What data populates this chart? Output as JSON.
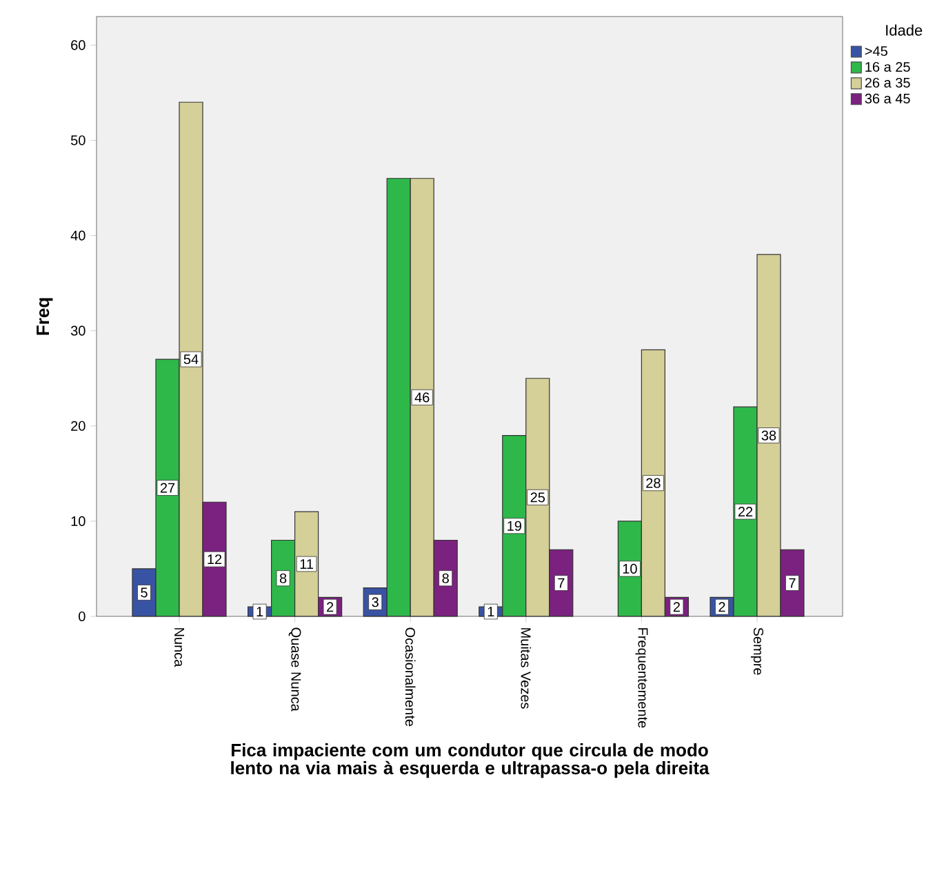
{
  "chart_data": {
    "type": "bar",
    "xlabel": "Fica impaciente com um condutor que circula de modo  lento na via mais à esquerda e ultrapassa-o pela direita",
    "ylabel": "Freq",
    "legend_title": "Idade",
    "categories": [
      "Nunca",
      "Quase Nunca",
      "Ocasionalmente",
      "Muitas Vezes",
      "Frequentemente",
      "Sempre"
    ],
    "series": [
      {
        "name": ">45",
        "color": "#3953a4",
        "values": [
          5,
          1,
          3,
          1,
          null,
          2
        ],
        "value_labels": [
          "5",
          "1",
          "3",
          "1",
          null,
          "2"
        ]
      },
      {
        "name": "16 a 25",
        "color": "#2eb84a",
        "values": [
          27,
          8,
          46,
          19,
          10,
          22
        ],
        "value_labels": [
          "27",
          "8",
          null,
          "19",
          "10",
          "22"
        ]
      },
      {
        "name": "26 a 35",
        "color": "#d5cf98",
        "values": [
          54,
          11,
          46,
          25,
          28,
          38
        ],
        "value_labels": [
          "54",
          "11",
          "46",
          "25",
          "28",
          "38"
        ]
      },
      {
        "name": "36 a 45",
        "color": "#7b2180",
        "values": [
          12,
          2,
          8,
          7,
          2,
          7
        ],
        "value_labels": [
          "12",
          "2",
          "8",
          "7",
          "2",
          "7"
        ]
      }
    ],
    "ylim": [
      0,
      63
    ],
    "yticks": [
      0,
      10,
      20,
      30,
      40,
      50,
      60
    ],
    "grid": false,
    "legend": "top right"
  }
}
